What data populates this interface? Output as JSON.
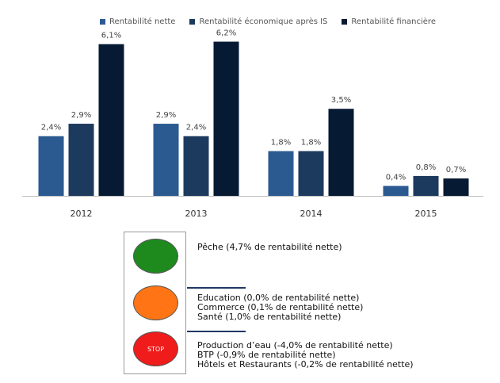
{
  "chart_data": {
    "type": "bar",
    "categories": [
      "2012",
      "2013",
      "2014",
      "2015"
    ],
    "series": [
      {
        "name": "Rentabilité nette",
        "values": [
          2.4,
          2.9,
          1.8,
          0.4
        ],
        "labels": [
          "2,4%",
          "2,9%",
          "1,8%",
          "0,4%"
        ],
        "color": "#2b5a91"
      },
      {
        "name": "Rentabilité économique après IS",
        "values": [
          2.9,
          2.4,
          1.8,
          0.8
        ],
        "labels": [
          "2,9%",
          "2,4%",
          "1,8%",
          "0,8%"
        ],
        "color": "#1c3a5e"
      },
      {
        "name": "Rentabilité financière",
        "values": [
          6.1,
          6.2,
          3.5,
          0.7
        ],
        "labels": [
          "6,1%",
          "6,2%",
          "3,5%",
          "0,7%"
        ],
        "color": "#071a33"
      }
    ],
    "ylim": [
      0,
      6.6
    ],
    "grid": false,
    "legend_position": "top"
  },
  "traffic_light": {
    "stop_label": "STOP",
    "green": [
      "Pêche (4,7% de rentabilité nette)"
    ],
    "orange": [
      "Education (0,0% de rentabilité nette)",
      "Commerce (0,1% de rentabilité nette)",
      "Santé (1,0% de rentabilité nette)"
    ],
    "red": [
      "Production d’eau (-4,0% de rentabilité nette)",
      "BTP (-0,9% de rentabilité nette)",
      "Hôtels et Restaurants (-0,2% de rentabilité nette)"
    ]
  }
}
